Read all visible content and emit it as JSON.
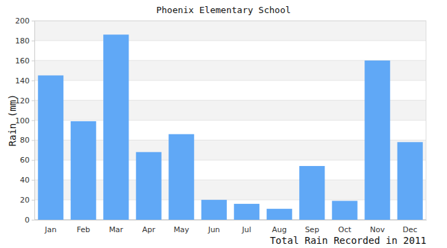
{
  "chart_data": {
    "type": "bar",
    "title": "Phoenix Elementary School",
    "y_label": "Rain (mm)",
    "x_label": "Total Rain Recorded in 2011",
    "categories": [
      "Jan",
      "Feb",
      "Mar",
      "Apr",
      "May",
      "Jun",
      "Jul",
      "Aug",
      "Sep",
      "Oct",
      "Nov",
      "Dec"
    ],
    "values": [
      145,
      99,
      186,
      68,
      86,
      20,
      16,
      11,
      54,
      19,
      160,
      78
    ],
    "color": "#60a8f6",
    "ylim": [
      0,
      200
    ],
    "yticks": [
      0,
      20,
      40,
      60,
      80,
      100,
      120,
      140,
      160,
      180,
      200
    ],
    "grid": true
  }
}
